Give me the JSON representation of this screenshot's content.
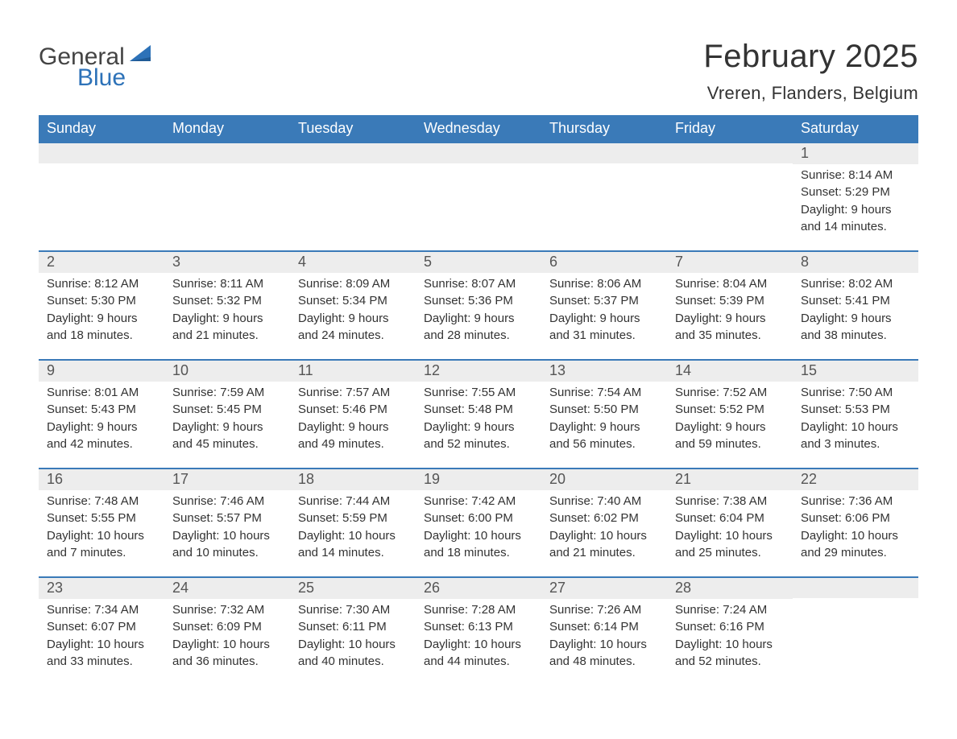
{
  "logo": {
    "text_general": "General",
    "text_blue": "Blue"
  },
  "header": {
    "month_title": "February 2025",
    "location": "Vreren, Flanders, Belgium"
  },
  "styles": {
    "brand_blue": "#3a7ab8",
    "text_color": "#333333",
    "daynum_bg": "#ededed",
    "page_bg": "#ffffff",
    "month_title_fontsize": 40,
    "location_fontsize": 22,
    "dow_fontsize": 18,
    "daynum_fontsize": 18,
    "detail_fontsize": 15
  },
  "days_of_week": [
    "Sunday",
    "Monday",
    "Tuesday",
    "Wednesday",
    "Thursday",
    "Friday",
    "Saturday"
  ],
  "weeks": [
    [
      {
        "day": null
      },
      {
        "day": null
      },
      {
        "day": null
      },
      {
        "day": null
      },
      {
        "day": null
      },
      {
        "day": null
      },
      {
        "day": "1",
        "sunrise": "Sunrise: 8:14 AM",
        "sunset": "Sunset: 5:29 PM",
        "daylight1": "Daylight: 9 hours",
        "daylight2": "and 14 minutes."
      }
    ],
    [
      {
        "day": "2",
        "sunrise": "Sunrise: 8:12 AM",
        "sunset": "Sunset: 5:30 PM",
        "daylight1": "Daylight: 9 hours",
        "daylight2": "and 18 minutes."
      },
      {
        "day": "3",
        "sunrise": "Sunrise: 8:11 AM",
        "sunset": "Sunset: 5:32 PM",
        "daylight1": "Daylight: 9 hours",
        "daylight2": "and 21 minutes."
      },
      {
        "day": "4",
        "sunrise": "Sunrise: 8:09 AM",
        "sunset": "Sunset: 5:34 PM",
        "daylight1": "Daylight: 9 hours",
        "daylight2": "and 24 minutes."
      },
      {
        "day": "5",
        "sunrise": "Sunrise: 8:07 AM",
        "sunset": "Sunset: 5:36 PM",
        "daylight1": "Daylight: 9 hours",
        "daylight2": "and 28 minutes."
      },
      {
        "day": "6",
        "sunrise": "Sunrise: 8:06 AM",
        "sunset": "Sunset: 5:37 PM",
        "daylight1": "Daylight: 9 hours",
        "daylight2": "and 31 minutes."
      },
      {
        "day": "7",
        "sunrise": "Sunrise: 8:04 AM",
        "sunset": "Sunset: 5:39 PM",
        "daylight1": "Daylight: 9 hours",
        "daylight2": "and 35 minutes."
      },
      {
        "day": "8",
        "sunrise": "Sunrise: 8:02 AM",
        "sunset": "Sunset: 5:41 PM",
        "daylight1": "Daylight: 9 hours",
        "daylight2": "and 38 minutes."
      }
    ],
    [
      {
        "day": "9",
        "sunrise": "Sunrise: 8:01 AM",
        "sunset": "Sunset: 5:43 PM",
        "daylight1": "Daylight: 9 hours",
        "daylight2": "and 42 minutes."
      },
      {
        "day": "10",
        "sunrise": "Sunrise: 7:59 AM",
        "sunset": "Sunset: 5:45 PM",
        "daylight1": "Daylight: 9 hours",
        "daylight2": "and 45 minutes."
      },
      {
        "day": "11",
        "sunrise": "Sunrise: 7:57 AM",
        "sunset": "Sunset: 5:46 PM",
        "daylight1": "Daylight: 9 hours",
        "daylight2": "and 49 minutes."
      },
      {
        "day": "12",
        "sunrise": "Sunrise: 7:55 AM",
        "sunset": "Sunset: 5:48 PM",
        "daylight1": "Daylight: 9 hours",
        "daylight2": "and 52 minutes."
      },
      {
        "day": "13",
        "sunrise": "Sunrise: 7:54 AM",
        "sunset": "Sunset: 5:50 PM",
        "daylight1": "Daylight: 9 hours",
        "daylight2": "and 56 minutes."
      },
      {
        "day": "14",
        "sunrise": "Sunrise: 7:52 AM",
        "sunset": "Sunset: 5:52 PM",
        "daylight1": "Daylight: 9 hours",
        "daylight2": "and 59 minutes."
      },
      {
        "day": "15",
        "sunrise": "Sunrise: 7:50 AM",
        "sunset": "Sunset: 5:53 PM",
        "daylight1": "Daylight: 10 hours",
        "daylight2": "and 3 minutes."
      }
    ],
    [
      {
        "day": "16",
        "sunrise": "Sunrise: 7:48 AM",
        "sunset": "Sunset: 5:55 PM",
        "daylight1": "Daylight: 10 hours",
        "daylight2": "and 7 minutes."
      },
      {
        "day": "17",
        "sunrise": "Sunrise: 7:46 AM",
        "sunset": "Sunset: 5:57 PM",
        "daylight1": "Daylight: 10 hours",
        "daylight2": "and 10 minutes."
      },
      {
        "day": "18",
        "sunrise": "Sunrise: 7:44 AM",
        "sunset": "Sunset: 5:59 PM",
        "daylight1": "Daylight: 10 hours",
        "daylight2": "and 14 minutes."
      },
      {
        "day": "19",
        "sunrise": "Sunrise: 7:42 AM",
        "sunset": "Sunset: 6:00 PM",
        "daylight1": "Daylight: 10 hours",
        "daylight2": "and 18 minutes."
      },
      {
        "day": "20",
        "sunrise": "Sunrise: 7:40 AM",
        "sunset": "Sunset: 6:02 PM",
        "daylight1": "Daylight: 10 hours",
        "daylight2": "and 21 minutes."
      },
      {
        "day": "21",
        "sunrise": "Sunrise: 7:38 AM",
        "sunset": "Sunset: 6:04 PM",
        "daylight1": "Daylight: 10 hours",
        "daylight2": "and 25 minutes."
      },
      {
        "day": "22",
        "sunrise": "Sunrise: 7:36 AM",
        "sunset": "Sunset: 6:06 PM",
        "daylight1": "Daylight: 10 hours",
        "daylight2": "and 29 minutes."
      }
    ],
    [
      {
        "day": "23",
        "sunrise": "Sunrise: 7:34 AM",
        "sunset": "Sunset: 6:07 PM",
        "daylight1": "Daylight: 10 hours",
        "daylight2": "and 33 minutes."
      },
      {
        "day": "24",
        "sunrise": "Sunrise: 7:32 AM",
        "sunset": "Sunset: 6:09 PM",
        "daylight1": "Daylight: 10 hours",
        "daylight2": "and 36 minutes."
      },
      {
        "day": "25",
        "sunrise": "Sunrise: 7:30 AM",
        "sunset": "Sunset: 6:11 PM",
        "daylight1": "Daylight: 10 hours",
        "daylight2": "and 40 minutes."
      },
      {
        "day": "26",
        "sunrise": "Sunrise: 7:28 AM",
        "sunset": "Sunset: 6:13 PM",
        "daylight1": "Daylight: 10 hours",
        "daylight2": "and 44 minutes."
      },
      {
        "day": "27",
        "sunrise": "Sunrise: 7:26 AM",
        "sunset": "Sunset: 6:14 PM",
        "daylight1": "Daylight: 10 hours",
        "daylight2": "and 48 minutes."
      },
      {
        "day": "28",
        "sunrise": "Sunrise: 7:24 AM",
        "sunset": "Sunset: 6:16 PM",
        "daylight1": "Daylight: 10 hours",
        "daylight2": "and 52 minutes."
      },
      {
        "day": null
      }
    ]
  ]
}
